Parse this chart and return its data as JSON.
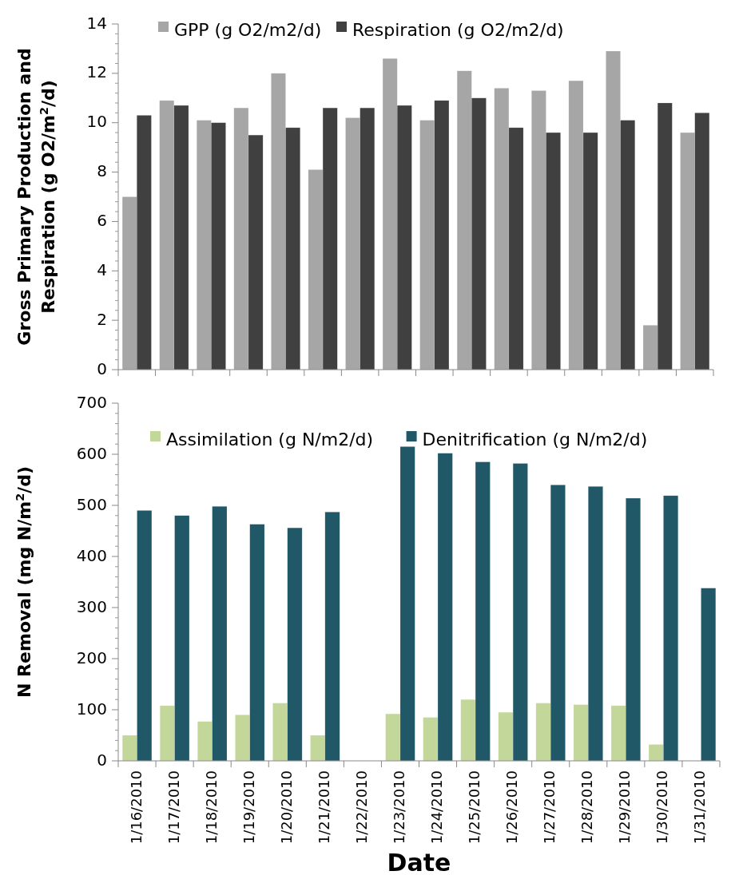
{
  "chart_data": [
    {
      "type": "bar",
      "categories": [
        null,
        null,
        null,
        null,
        null,
        null,
        null,
        null,
        null,
        null,
        null,
        null,
        null,
        null,
        null,
        null
      ],
      "ylabel": "Gross Primary Production and Respiration (g O2/m$^{2}$/d)",
      "series": [
        {
          "name": "GPP (g O2/m2/d)",
          "color": "#a6a6a6",
          "values": [
            7.0,
            10.9,
            10.1,
            10.6,
            12.0,
            8.1,
            10.2,
            12.6,
            10.1,
            12.1,
            11.4,
            11.3,
            11.7,
            12.9,
            1.8,
            9.6
          ]
        },
        {
          "name": "Respiration (g O2/m2/d)",
          "color": "#404040",
          "values": [
            10.3,
            10.7,
            10.0,
            9.5,
            9.8,
            10.6,
            10.6,
            10.7,
            10.9,
            11.0,
            9.8,
            9.6,
            9.6,
            10.1,
            10.8,
            10.4
          ]
        }
      ],
      "ylim": [
        0,
        14
      ],
      "yticks": [
        0,
        2,
        4,
        6,
        8,
        10,
        12,
        14
      ],
      "legend": "top"
    },
    {
      "type": "bar",
      "categories": [
        "1/16/2010",
        "1/17/2010",
        "1/18/2010",
        "1/19/2010",
        "1/20/2010",
        "1/21/2010",
        "1/22/2010",
        "1/23/2010",
        "1/24/2010",
        "1/25/2010",
        "1/26/2010",
        "1/27/2010",
        "1/28/2010",
        "1/29/2010",
        "1/30/2010",
        "1/31/2010"
      ],
      "xlabel": "Date",
      "ylabel": "N Removal (mg N/m$^{2}$/d)",
      "series": [
        {
          "name": "Assimilation (g N/m2/d)",
          "color": "#c4d79b",
          "values": [
            50,
            108,
            77,
            90,
            113,
            50,
            null,
            92,
            85,
            120,
            95,
            113,
            110,
            108,
            32,
            null
          ]
        },
        {
          "name": "Denitrification (g N/m2/d)",
          "color": "#215868",
          "values": [
            490,
            480,
            498,
            463,
            456,
            487,
            null,
            615,
            602,
            585,
            582,
            540,
            537,
            514,
            519,
            338
          ]
        }
      ],
      "ylim": [
        0,
        700
      ],
      "yticks": [
        0,
        100,
        200,
        300,
        400,
        500,
        600,
        700
      ],
      "legend": "top"
    }
  ]
}
